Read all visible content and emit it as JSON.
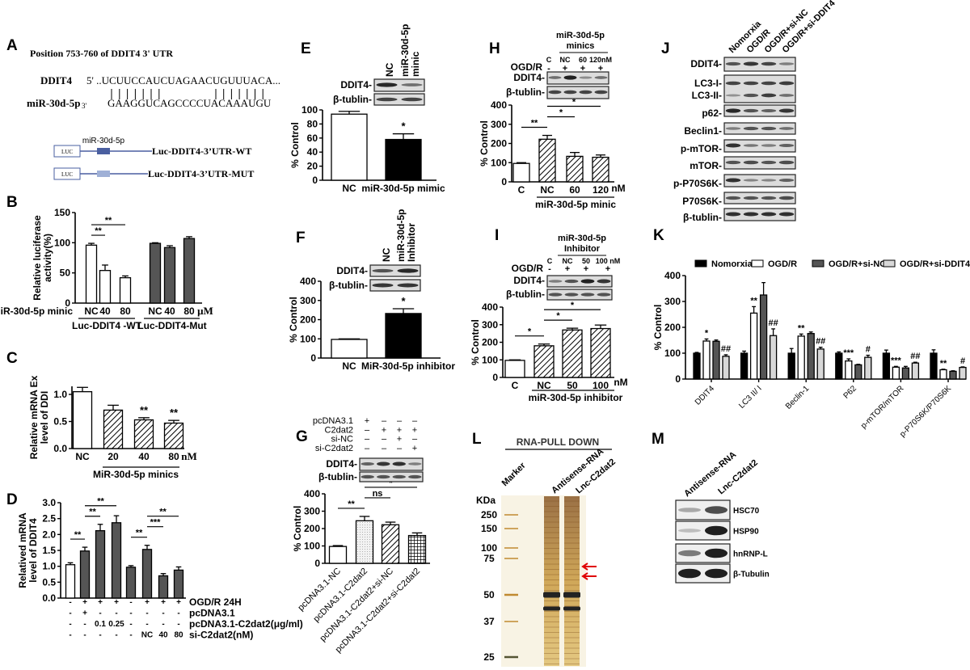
{
  "panel_labels": {
    "A": "A",
    "B": "B",
    "C": "C",
    "D": "D",
    "E": "E",
    "F": "F",
    "G": "G",
    "H": "H",
    "I": "I",
    "J": "J",
    "K": "K",
    "L": "L",
    "M": "M"
  },
  "panel_a": {
    "title": "Position 753-760 of DDIT4 3' UTR",
    "gene": "DDIT4",
    "gene_seq": "5' ..UCUUCCAUCUAGAACUGUUUACA...",
    "mirna": "miR-30d-5p",
    "mirna_end": "3'",
    "mirna_seq": "GAAGGUCAGCCCCUACAAAUGU",
    "luc": "LUC",
    "site_label": "miR-30d-5p",
    "wt": "Luc-DDIT4-3’UTR-WT",
    "mut": "Luc-DDIT4-3’UTR-MUT",
    "colors": {
      "site_wt": "#4a5fa0",
      "site_mut": "#9fb0d6"
    }
  },
  "blots": {
    "ddit4": "DDIT4-",
    "tublin": "β-tublin-",
    "e_cols": [
      "NC",
      "miR-30d-5p",
      "minic"
    ],
    "f_cols": [
      "NC",
      "miR-30d-5p",
      "Inhibitor"
    ],
    "h_header": [
      "miR-30d-5p",
      "minics"
    ],
    "h_cols": [
      "C",
      "NC",
      "60",
      "120nM"
    ],
    "h_ogd": {
      "label": "OGD/R",
      "values": [
        "-",
        "+",
        "+",
        "+"
      ]
    },
    "i_header": [
      "miR-30d-5p",
      "Inhibitor"
    ],
    "i_cols": [
      "C",
      "NC",
      "50",
      "100 nM"
    ],
    "i_ogd": {
      "label": "OGD/R",
      "values": [
        "-",
        "+",
        "+",
        "+"
      ]
    },
    "g_rows": [
      {
        "label": "pcDNA3.1",
        "values": [
          "+",
          "–",
          "–",
          "–"
        ]
      },
      {
        "label": "C2dat2",
        "values": [
          "–",
          "+",
          "+",
          "+"
        ]
      },
      {
        "label": "si-NC",
        "values": [
          "–",
          "–",
          "+",
          "–"
        ]
      },
      {
        "label": "si-C2dat2",
        "values": [
          "–",
          "–",
          "–",
          "+"
        ]
      }
    ],
    "j_cols": [
      "Nomorxia",
      "OGD/R",
      "OGD/R+si-NC",
      "OGD/R+si-DDIT4"
    ],
    "j_rows": [
      "DDIT4-",
      "LC3-I-",
      "LC3-II-",
      "p62-",
      "Beclin1-",
      "p-mTOR-",
      "mTOR-",
      "p-P70S6K-",
      "P70S6K-",
      "β-tublin-"
    ],
    "m_cols": [
      "Antisense-RNA",
      "Lnc-C2dat2"
    ],
    "m_rows": [
      "HSC70",
      "HSP90",
      "hnRNP-L",
      "β-Tubulin"
    ]
  },
  "gel_l": {
    "title": "RNA-PULL DOWN",
    "lanes": [
      "Marker",
      "Antisense-RNA",
      "Lnc-C2dat2"
    ],
    "unit": "KDa",
    "markers": [
      "250",
      "150",
      "100",
      "75",
      "50",
      "37",
      "25"
    ],
    "arrow_color": "#e00000"
  },
  "chart_data": [
    {
      "panel": "B",
      "type": "bar",
      "ylabel": [
        "Relative luciferase",
        "activity(%)"
      ],
      "yticks": [
        "0",
        "50",
        "100",
        "150"
      ],
      "categories": [
        "NC",
        "40",
        "80",
        "NC",
        "40",
        "80"
      ],
      "values": [
        96,
        54,
        42,
        99,
        92,
        107
      ],
      "errors": [
        3,
        9,
        3,
        1,
        3,
        3
      ],
      "x_prefix": "miR-30d-5p minic",
      "unit": "μM",
      "groups": [
        "Luc-DDIT4 -WT",
        "Luc-DDIT4-Mut"
      ],
      "significance": [
        {
          "text": "**",
          "from": 0,
          "to": 1
        },
        {
          "text": "**",
          "from": 0,
          "to": 2
        }
      ]
    },
    {
      "panel": "C",
      "type": "bar",
      "ylabel": [
        "Relative mRNA Ex",
        "level of DDI"
      ],
      "yticks": [
        "0.0",
        "0.5",
        "1.0"
      ],
      "categories": [
        "NC",
        "20",
        "40",
        "80"
      ],
      "values": [
        1.05,
        0.71,
        0.53,
        0.47
      ],
      "errors": [
        0.08,
        0.09,
        0.04,
        0.05
      ],
      "unit": "nM",
      "groups": [
        "MiR-30d-5p minics"
      ],
      "significance": [
        {
          "text": "**",
          "at": 2
        },
        {
          "text": "**",
          "at": 3
        }
      ]
    },
    {
      "panel": "D",
      "type": "bar",
      "ylabel": [
        "Relatived mRNA",
        "level of DDIT4"
      ],
      "yticks": [
        "0.0",
        "0.5",
        "1.0",
        "1.5",
        "2.0",
        "2.5",
        "3.0"
      ],
      "values": [
        1.05,
        1.48,
        2.12,
        2.37,
        0.97,
        1.53,
        0.7,
        0.88
      ],
      "errors": [
        0.06,
        0.12,
        0.2,
        0.22,
        0.05,
        0.13,
        0.07,
        0.1
      ],
      "conditions": [
        {
          "label": "OGD/R 24H",
          "values": [
            "-",
            "+",
            "+",
            "+",
            "-",
            "+",
            "+",
            "+"
          ]
        },
        {
          "label": "pcDNA3.1",
          "values": [
            "-",
            "+",
            "-",
            "-",
            "-",
            "-",
            "-",
            "-"
          ]
        },
        {
          "label": "pcDNA3.1-C2dat2(μg/ml)",
          "values": [
            "-",
            "-",
            "0.1",
            "0.25",
            "-",
            "-",
            "-",
            "-"
          ]
        },
        {
          "label": "si-C2dat2(nM)",
          "values": [
            "-",
            "-",
            "-",
            "-",
            "-",
            "NC",
            "40",
            "80"
          ]
        }
      ],
      "significance": [
        {
          "text": "**",
          "from": 0,
          "to": 1
        },
        {
          "text": "**",
          "from": 1,
          "to": 2
        },
        {
          "text": "**",
          "from": 1,
          "to": 3
        },
        {
          "text": "**",
          "from": 4,
          "to": 5
        },
        {
          "text": "***",
          "from": 5,
          "to": 6
        },
        {
          "text": "**",
          "from": 5,
          "to": 7
        }
      ]
    },
    {
      "panel": "E",
      "type": "bar",
      "ylabel": [
        "% Control"
      ],
      "yticks": [
        "0",
        "20",
        "40",
        "60",
        "80",
        "100"
      ],
      "categories": [
        "NC",
        "miR-30d-5p mimic"
      ],
      "values": [
        94,
        58
      ],
      "errors": [
        4,
        8
      ],
      "significance": [
        {
          "text": "*",
          "at": 1
        }
      ]
    },
    {
      "panel": "F",
      "type": "bar",
      "ylabel": [
        "% Control"
      ],
      "yticks": [
        "0",
        "100",
        "200",
        "300",
        "400"
      ],
      "categories": [
        "NC",
        "MiR-30d-5p inhibitor"
      ],
      "values": [
        97,
        232
      ],
      "errors": [
        3,
        25
      ],
      "significance": [
        {
          "text": "*",
          "at": 1
        }
      ]
    },
    {
      "panel": "G",
      "type": "bar",
      "ylabel": [
        "% Control"
      ],
      "yticks": [
        "0",
        "100",
        "200",
        "300",
        "400"
      ],
      "categories": [
        "pcDNA3.1-NC",
        "pcDNA3.1-C2dat2",
        "pcDNA3.1-C2dat2+si-NC",
        "pcDNA3.1-C2dat2+si-C2dat2"
      ],
      "values": [
        97,
        245,
        222,
        160
      ],
      "errors": [
        5,
        25,
        15,
        15
      ],
      "significance": [
        {
          "text": "**",
          "from": 0,
          "to": 1
        },
        {
          "text": "ns",
          "from": 1,
          "to": 2
        },
        {
          "text": "*",
          "from": 1,
          "to": 3
        }
      ]
    },
    {
      "panel": "H",
      "type": "bar",
      "ylabel": [
        "% Control"
      ],
      "yticks": [
        "0",
        "100",
        "200",
        "300",
        "400"
      ],
      "categories": [
        "C",
        "NC",
        "60",
        "120"
      ],
      "values": [
        96,
        222,
        133,
        128
      ],
      "errors": [
        4,
        20,
        20,
        12
      ],
      "unit": "nM",
      "groups": [
        "miR-30d-5p minic"
      ],
      "significance": [
        {
          "text": "**",
          "from": 0,
          "to": 1
        },
        {
          "text": "*",
          "from": 1,
          "to": 2
        },
        {
          "text": "*",
          "from": 1,
          "to": 3
        }
      ]
    },
    {
      "panel": "I",
      "type": "bar",
      "ylabel": [
        "% Control"
      ],
      "yticks": [
        "0",
        "100",
        "200",
        "300",
        "400"
      ],
      "categories": [
        "C",
        "NC",
        "50",
        "100"
      ],
      "values": [
        97,
        180,
        270,
        278
      ],
      "errors": [
        3,
        10,
        10,
        20
      ],
      "unit": "nM",
      "groups": [
        "miR-30d-5p inhibitor"
      ],
      "significance": [
        {
          "text": "*",
          "from": 0,
          "to": 1
        },
        {
          "text": "*",
          "from": 1,
          "to": 2
        },
        {
          "text": "*",
          "from": 1,
          "to": 3
        }
      ]
    },
    {
      "panel": "K",
      "type": "bar",
      "ylabel": [
        "% Control"
      ],
      "yticks": [
        "0",
        "100",
        "200",
        "300",
        "400"
      ],
      "categories": [
        "DDIT4",
        "LC3 II/ I",
        "Beclin-1",
        "P62",
        "p-mTOR/mTOR",
        "p-P70S6K/P70S6K"
      ],
      "legend": "top",
      "series": [
        {
          "name": "Nomorxia",
          "values": [
            100,
            100,
            100,
            100,
            100,
            100
          ],
          "errors": [
            3,
            8,
            18,
            5,
            12,
            13
          ]
        },
        {
          "name": "OGD/R",
          "values": [
            147,
            255,
            166,
            70,
            46,
            36
          ],
          "errors": [
            8,
            25,
            8,
            8,
            3,
            2
          ]
        },
        {
          "name": "OGD/R+si-NC",
          "values": [
            146,
            325,
            176,
            55,
            43,
            30
          ],
          "errors": [
            5,
            48,
            6,
            2,
            6,
            2
          ]
        },
        {
          "name": "OGD/R+si-DDIT4",
          "values": [
            88,
            168,
            116,
            84,
            62,
            45
          ],
          "errors": [
            6,
            26,
            7,
            8,
            3,
            2
          ]
        }
      ],
      "significance": [
        {
          "text": "*",
          "cat": 0,
          "series": 1
        },
        {
          "text": "##",
          "cat": 0,
          "series": 3
        },
        {
          "text": "**",
          "cat": 1,
          "series": 1
        },
        {
          "text": "##",
          "cat": 1,
          "series": 3
        },
        {
          "text": "**",
          "cat": 2,
          "series": 1
        },
        {
          "text": "##",
          "cat": 2,
          "series": 3
        },
        {
          "text": "***",
          "cat": 3,
          "series": 1
        },
        {
          "text": "#",
          "cat": 3,
          "series": 3
        },
        {
          "text": "***",
          "cat": 4,
          "series": 1
        },
        {
          "text": "##",
          "cat": 4,
          "series": 3
        },
        {
          "text": "**",
          "cat": 5,
          "series": 1
        },
        {
          "text": "#",
          "cat": 5,
          "series": 3
        }
      ]
    }
  ]
}
